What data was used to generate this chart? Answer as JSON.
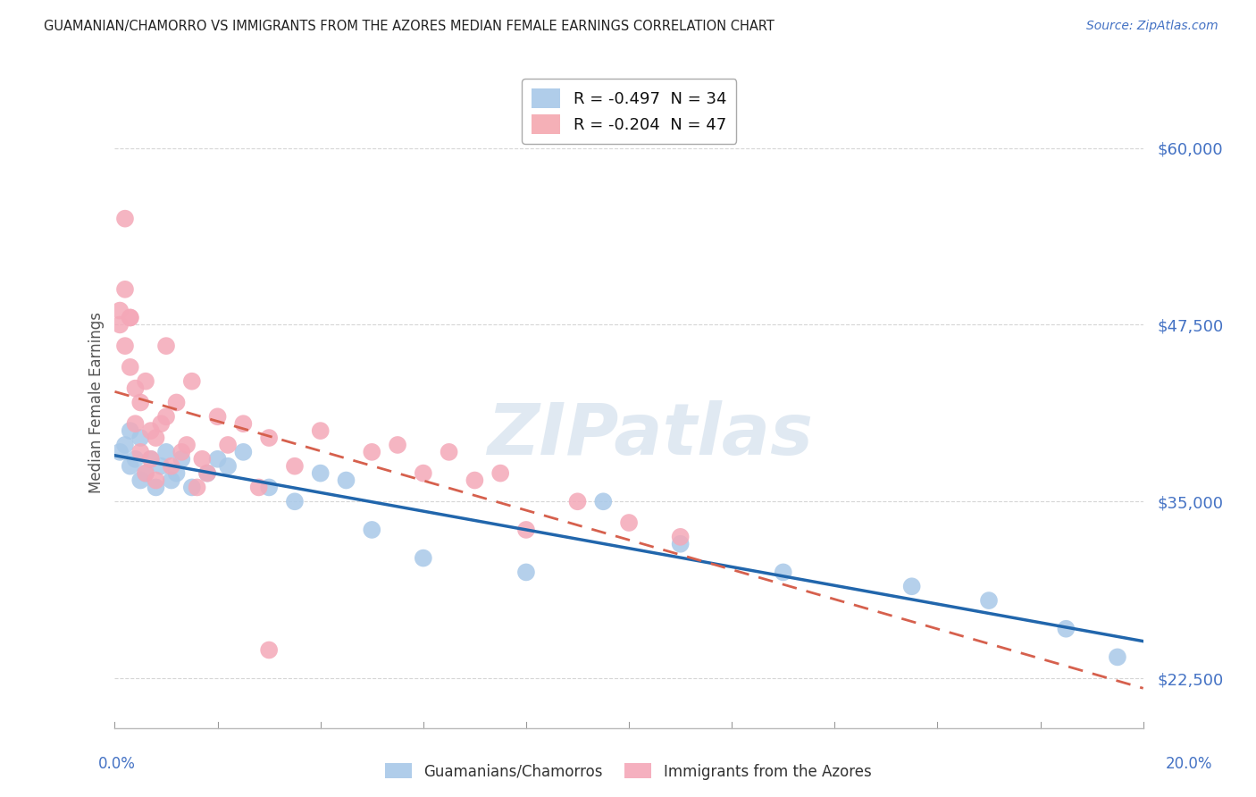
{
  "title": "GUAMANIAN/CHAMORRO VS IMMIGRANTS FROM THE AZORES MEDIAN FEMALE EARNINGS CORRELATION CHART",
  "source": "Source: ZipAtlas.com",
  "ylabel": "Median Female Earnings",
  "yticks": [
    22500,
    35000,
    47500,
    60000
  ],
  "ytick_labels": [
    "$22,500",
    "$35,000",
    "$47,500",
    "$60,000"
  ],
  "xlim": [
    0.0,
    0.2
  ],
  "ylim": [
    19000,
    65000
  ],
  "watermark": "ZIPatlas",
  "legend_entries": [
    {
      "label": "R = -0.497  N = 34",
      "color": "#a8c8e8"
    },
    {
      "label": "R = -0.204  N = 47",
      "color": "#f4a8b0"
    }
  ],
  "series1_label": "Guamanians/Chamorros",
  "series2_label": "Immigrants from the Azores",
  "series1_color": "#a8c8e8",
  "series2_color": "#f4a8b8",
  "series1_line_color": "#2166ac",
  "series2_line_color": "#d6604d",
  "background_color": "#ffffff",
  "grid_color": "#cccccc",
  "title_color": "#333333",
  "axis_label_color": "#4472c4",
  "s1_x": [
    0.001,
    0.002,
    0.003,
    0.003,
    0.004,
    0.005,
    0.005,
    0.006,
    0.007,
    0.008,
    0.009,
    0.01,
    0.011,
    0.012,
    0.013,
    0.015,
    0.018,
    0.02,
    0.022,
    0.025,
    0.03,
    0.035,
    0.04,
    0.045,
    0.05,
    0.06,
    0.08,
    0.095,
    0.11,
    0.13,
    0.155,
    0.17,
    0.185,
    0.195
  ],
  "s1_y": [
    38500,
    39000,
    37500,
    40000,
    38000,
    36500,
    39500,
    37000,
    38000,
    36000,
    37500,
    38500,
    36500,
    37000,
    38000,
    36000,
    37000,
    38000,
    37500,
    38500,
    36000,
    35000,
    37000,
    36500,
    33000,
    31000,
    30000,
    35000,
    32000,
    30000,
    29000,
    28000,
    26000,
    24000
  ],
  "s2_x": [
    0.001,
    0.001,
    0.002,
    0.002,
    0.003,
    0.003,
    0.004,
    0.004,
    0.005,
    0.005,
    0.006,
    0.006,
    0.007,
    0.007,
    0.008,
    0.008,
    0.009,
    0.01,
    0.011,
    0.012,
    0.013,
    0.014,
    0.015,
    0.016,
    0.017,
    0.018,
    0.02,
    0.022,
    0.025,
    0.028,
    0.03,
    0.035,
    0.04,
    0.05,
    0.055,
    0.06,
    0.065,
    0.07,
    0.075,
    0.08,
    0.09,
    0.1,
    0.11,
    0.002,
    0.003,
    0.01,
    0.03
  ],
  "s2_y": [
    47500,
    48500,
    46000,
    50000,
    48000,
    44500,
    43000,
    40500,
    42000,
    38500,
    43500,
    37000,
    40000,
    38000,
    39500,
    36500,
    40500,
    41000,
    37500,
    42000,
    38500,
    39000,
    43500,
    36000,
    38000,
    37000,
    41000,
    39000,
    40500,
    36000,
    39500,
    37500,
    40000,
    38500,
    39000,
    37000,
    38500,
    36500,
    37000,
    33000,
    35000,
    33500,
    32500,
    55000,
    48000,
    46000,
    24500
  ]
}
